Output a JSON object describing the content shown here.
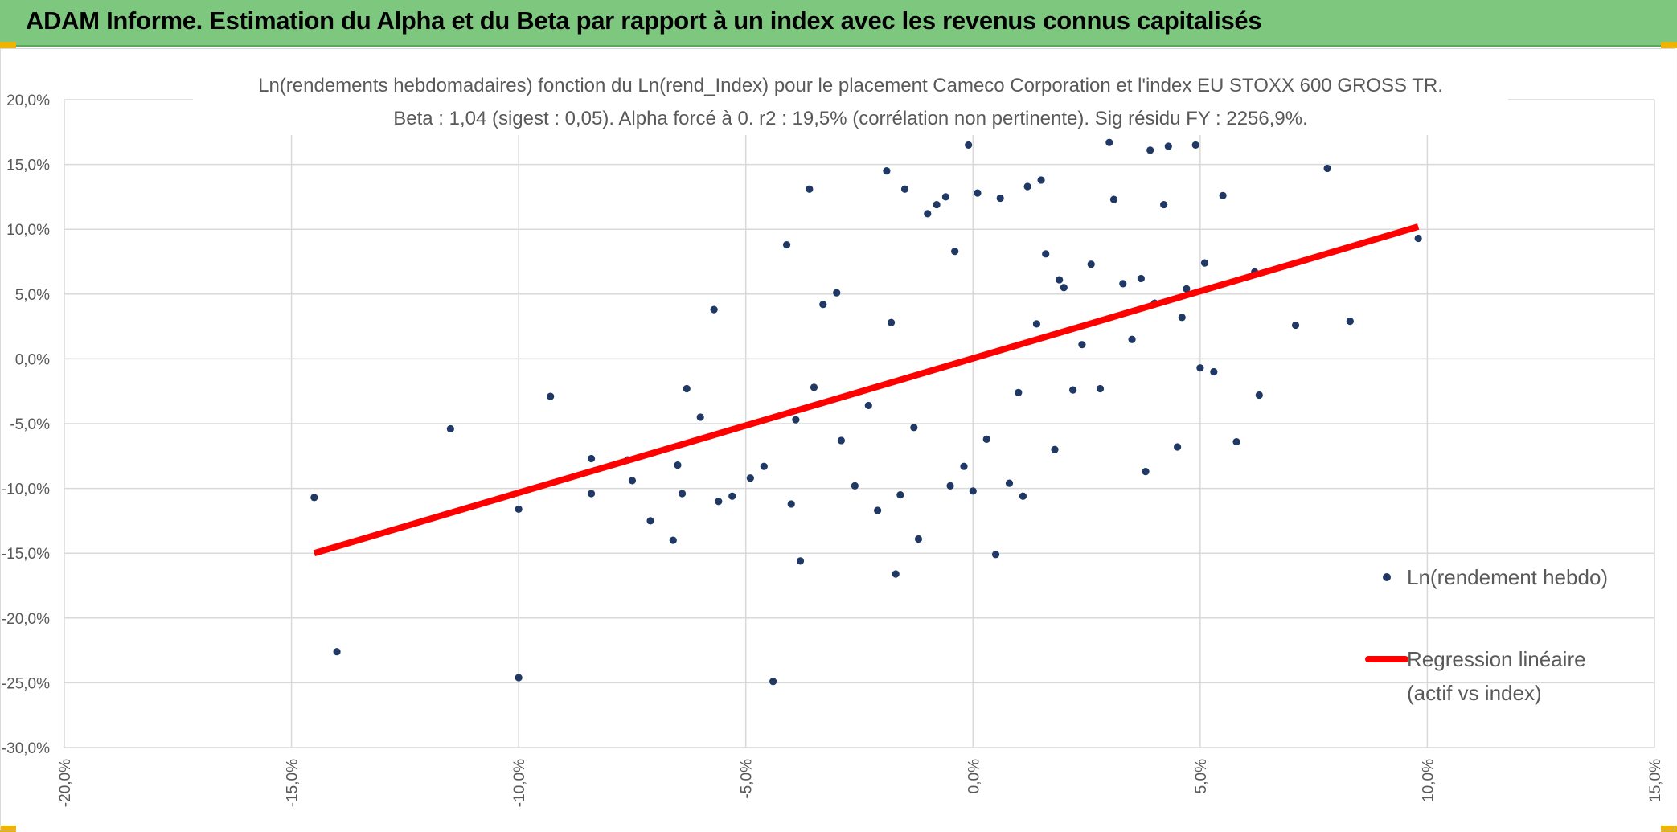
{
  "header": {
    "title": "ADAM Informe. Estimation du Alpha et du Beta par rapport à un index avec les revenus connus capitalisés"
  },
  "colors": {
    "banner": "#7dc87e",
    "points": "#203864",
    "regression": "#ff0000",
    "grid": "#d9d9d9",
    "text": "#595959"
  },
  "chart_data": {
    "type": "scatter",
    "title": "Ln(rendements hebdomadaires) fonction du Ln(rend_Index) pour le placement Cameco Corporation et l'index EU STOXX 600 GROSS TR.",
    "subtitle": "Beta : 1,04 (sigest : 0,05). Alpha forcé à 0. r2 : 19,5% (corrélation non pertinente). Sig résidu FY : 2256,9%.",
    "xlabel": "",
    "ylabel": "",
    "xlim": [
      -0.2,
      0.15
    ],
    "ylim": [
      -0.3,
      0.2
    ],
    "x_ticks": [
      -0.2,
      -0.15,
      -0.1,
      -0.05,
      0.0,
      0.05,
      0.1,
      0.15
    ],
    "y_ticks": [
      0.2,
      0.15,
      0.1,
      0.05,
      0.0,
      -0.05,
      -0.1,
      -0.15,
      -0.2,
      -0.25,
      -0.3
    ],
    "x_tick_labels": [
      "-20,0%",
      "-15,0%",
      "-10,0%",
      "-5,0%",
      "0,0%",
      "5,0%",
      "10,0%",
      "15,0%"
    ],
    "y_tick_labels": [
      "20,0%",
      "15,0%",
      "10,0%",
      "5,0%",
      "0,0%",
      "-5,0%",
      "-10,0%",
      "-15,0%",
      "-20,0%",
      "-25,0%",
      "-30,0%"
    ],
    "grid": true,
    "legend_position": "right",
    "series": [
      {
        "name": "Ln(rendement hebdo)",
        "kind": "scatter",
        "color": "#203864",
        "points": [
          [
            -0.145,
            -0.107
          ],
          [
            -0.14,
            -0.226
          ],
          [
            -0.115,
            -0.054
          ],
          [
            -0.1,
            -0.116
          ],
          [
            -0.1,
            -0.246
          ],
          [
            -0.093,
            -0.029
          ],
          [
            -0.084,
            -0.077
          ],
          [
            -0.084,
            -0.104
          ],
          [
            -0.076,
            -0.078
          ],
          [
            -0.075,
            -0.094
          ],
          [
            -0.071,
            -0.125
          ],
          [
            -0.066,
            -0.14
          ],
          [
            -0.065,
            -0.082
          ],
          [
            -0.064,
            -0.104
          ],
          [
            -0.063,
            -0.023
          ],
          [
            -0.06,
            -0.045
          ],
          [
            -0.057,
            0.038
          ],
          [
            -0.056,
            -0.11
          ],
          [
            -0.053,
            -0.106
          ],
          [
            -0.049,
            -0.092
          ],
          [
            -0.046,
            -0.083
          ],
          [
            -0.044,
            -0.249
          ],
          [
            -0.041,
            0.088
          ],
          [
            -0.04,
            -0.112
          ],
          [
            -0.039,
            -0.047
          ],
          [
            -0.038,
            -0.156
          ],
          [
            -0.036,
            0.131
          ],
          [
            -0.035,
            -0.022
          ],
          [
            -0.033,
            0.042
          ],
          [
            -0.03,
            0.051
          ],
          [
            -0.029,
            -0.063
          ],
          [
            -0.026,
            -0.098
          ],
          [
            -0.023,
            -0.036
          ],
          [
            -0.021,
            -0.117
          ],
          [
            -0.019,
            0.145
          ],
          [
            -0.018,
            0.028
          ],
          [
            -0.017,
            -0.166
          ],
          [
            -0.016,
            -0.105
          ],
          [
            -0.015,
            0.131
          ],
          [
            -0.013,
            -0.053
          ],
          [
            -0.012,
            -0.139
          ],
          [
            -0.01,
            0.112
          ],
          [
            -0.008,
            0.119
          ],
          [
            -0.006,
            0.125
          ],
          [
            -0.005,
            -0.098
          ],
          [
            -0.004,
            0.083
          ],
          [
            -0.002,
            -0.083
          ],
          [
            -0.001,
            0.165
          ],
          [
            0.0,
            -0.102
          ],
          [
            0.001,
            0.128
          ],
          [
            0.003,
            -0.062
          ],
          [
            0.005,
            -0.151
          ],
          [
            0.006,
            0.124
          ],
          [
            0.008,
            -0.096
          ],
          [
            0.01,
            -0.026
          ],
          [
            0.011,
            -0.106
          ],
          [
            0.012,
            0.133
          ],
          [
            0.014,
            0.027
          ],
          [
            0.015,
            0.138
          ],
          [
            0.016,
            0.081
          ],
          [
            0.018,
            -0.07
          ],
          [
            0.019,
            0.061
          ],
          [
            0.02,
            0.055
          ],
          [
            0.022,
            -0.024
          ],
          [
            0.024,
            0.011
          ],
          [
            0.026,
            0.073
          ],
          [
            0.028,
            -0.023
          ],
          [
            0.03,
            0.167
          ],
          [
            0.031,
            0.123
          ],
          [
            0.033,
            0.058
          ],
          [
            0.035,
            0.015
          ],
          [
            0.037,
            0.062
          ],
          [
            0.038,
            -0.087
          ],
          [
            0.039,
            0.161
          ],
          [
            0.04,
            0.043
          ],
          [
            0.042,
            0.119
          ],
          [
            0.043,
            0.164
          ],
          [
            0.045,
            -0.068
          ],
          [
            0.046,
            0.032
          ],
          [
            0.047,
            0.054
          ],
          [
            0.049,
            0.165
          ],
          [
            0.05,
            -0.007
          ],
          [
            0.051,
            0.074
          ],
          [
            0.053,
            -0.01
          ],
          [
            0.055,
            0.126
          ],
          [
            0.058,
            -0.064
          ],
          [
            0.062,
            0.067
          ],
          [
            0.063,
            -0.028
          ],
          [
            0.071,
            0.026
          ],
          [
            0.078,
            0.147
          ],
          [
            0.083,
            0.029
          ],
          [
            0.098,
            0.093
          ]
        ]
      },
      {
        "name": "Regression linéaire (actif vs index)",
        "kind": "line",
        "color": "#ff0000",
        "x": [
          -0.145,
          0.098
        ],
        "y": [
          -0.15,
          0.102
        ]
      }
    ]
  },
  "legend": {
    "scatter_label": "Ln(rendement hebdo)",
    "line_label_1": "Regression linéaire",
    "line_label_2": "(actif vs index)"
  }
}
